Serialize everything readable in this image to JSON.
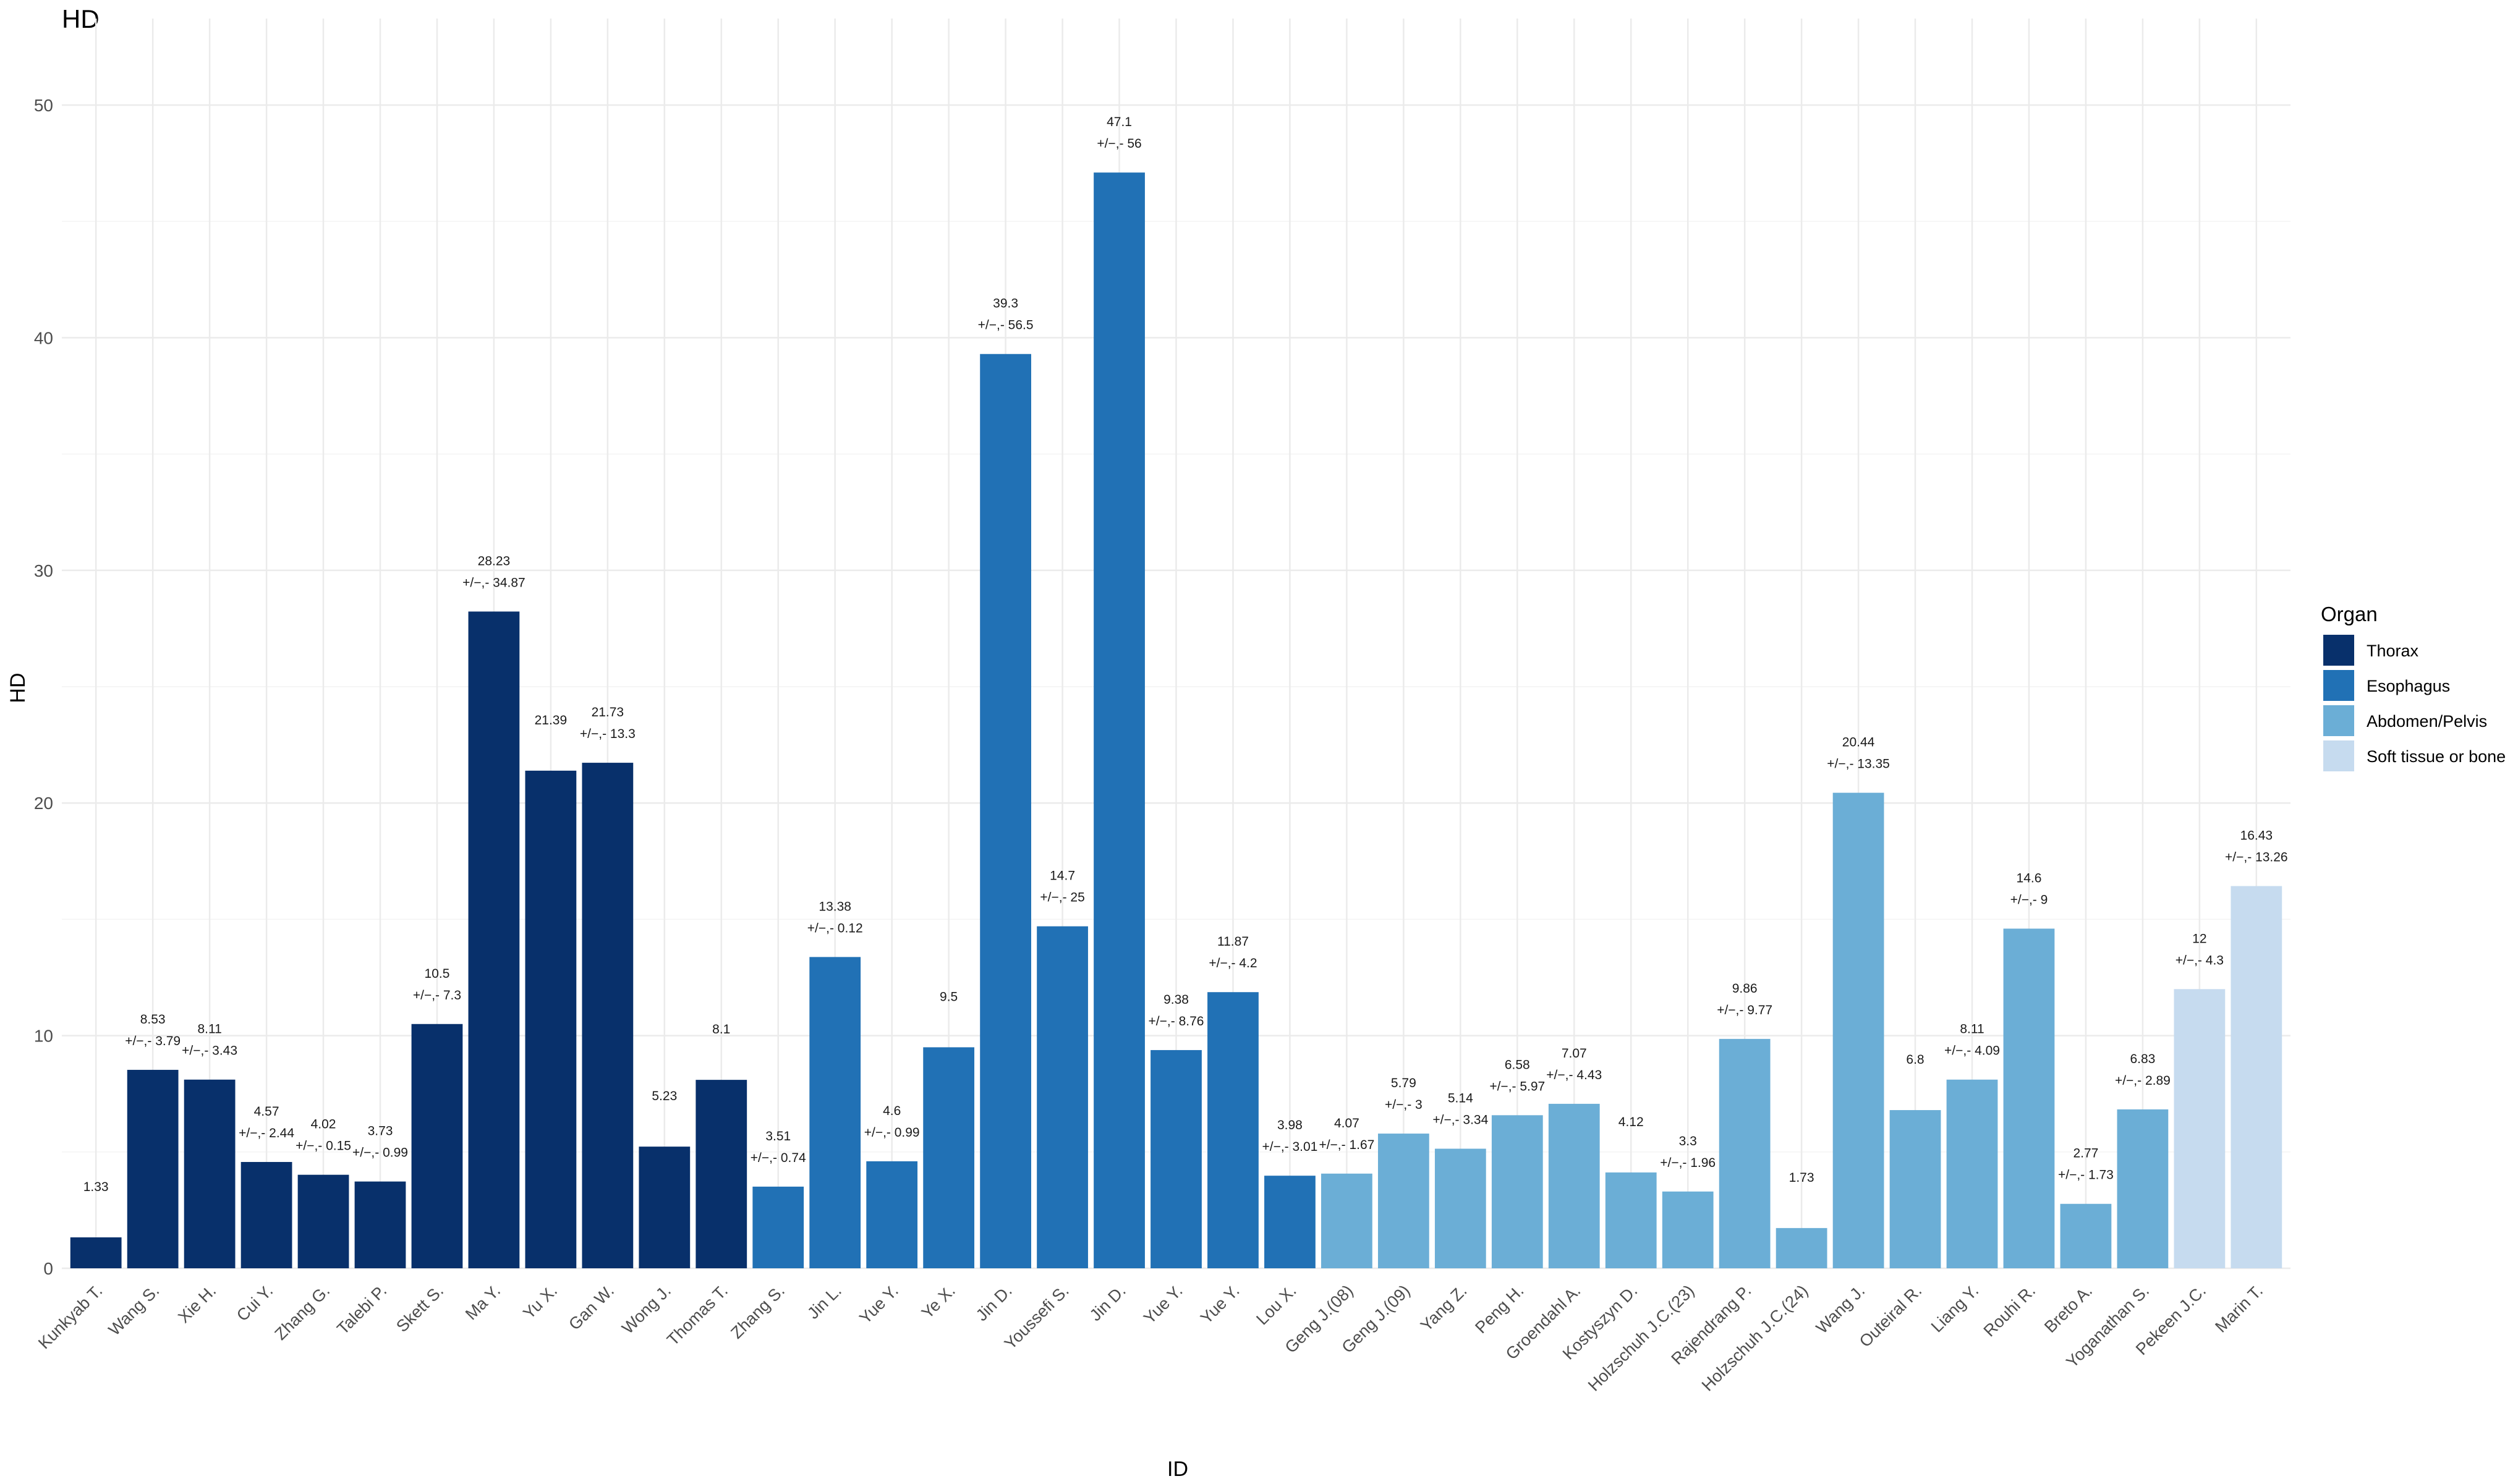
{
  "chart_data": {
    "type": "bar",
    "title": "HD",
    "xlabel": "ID",
    "ylabel": "HD",
    "ylim": [
      0,
      52
    ],
    "y_ticks": [
      0,
      10,
      20,
      30,
      40,
      50
    ],
    "grid": true,
    "legend": {
      "title": "Organ",
      "position": "right",
      "entries": [
        {
          "name": "Thorax",
          "color": "#08306B"
        },
        {
          "name": "Esophagus",
          "color": "#2171B5"
        },
        {
          "name": "Abdomen/Pelvis",
          "color": "#6BAED6"
        },
        {
          "name": "Soft tissue or bone",
          "color": "#C6DBEF"
        }
      ]
    },
    "pm_symbol": "+/−,-",
    "bars": [
      {
        "id": "Kunkyab T.",
        "value": 1.33,
        "value_label": "1.33",
        "sd_label": "",
        "organ": "Thorax"
      },
      {
        "id": "Wang S.",
        "value": 8.53,
        "value_label": "8.53",
        "sd_label": "3.79",
        "organ": "Thorax"
      },
      {
        "id": "Xie H.",
        "value": 8.11,
        "value_label": "8.11",
        "sd_label": "3.43",
        "organ": "Thorax"
      },
      {
        "id": "Cui Y.",
        "value": 4.57,
        "value_label": "4.57",
        "sd_label": "2.44",
        "organ": "Thorax"
      },
      {
        "id": "Zhang G.",
        "value": 4.02,
        "value_label": "4.02",
        "sd_label": "0.15",
        "organ": "Thorax"
      },
      {
        "id": "Talebi P.",
        "value": 3.73,
        "value_label": "3.73",
        "sd_label": "0.99",
        "organ": "Thorax"
      },
      {
        "id": "Skett S.",
        "value": 10.5,
        "value_label": "10.5",
        "sd_label": "7.3",
        "organ": "Thorax"
      },
      {
        "id": "Ma Y.",
        "value": 28.23,
        "value_label": "28.23",
        "sd_label": "34.87",
        "organ": "Thorax"
      },
      {
        "id": "Yu X.",
        "value": 21.39,
        "value_label": "21.39",
        "sd_label": "",
        "organ": "Thorax"
      },
      {
        "id": "Gan W.",
        "value": 21.73,
        "value_label": "21.73",
        "sd_label": "13.3",
        "organ": "Thorax"
      },
      {
        "id": "Wong J.",
        "value": 5.23,
        "value_label": "5.23",
        "sd_label": "",
        "organ": "Thorax"
      },
      {
        "id": "Thomas T.",
        "value": 8.1,
        "value_label": "8.1",
        "sd_label": "",
        "organ": "Thorax"
      },
      {
        "id": "Zhang S.",
        "value": 3.51,
        "value_label": "3.51",
        "sd_label": "0.74",
        "organ": "Esophagus"
      },
      {
        "id": "Jin L.",
        "value": 13.38,
        "value_label": "13.38",
        "sd_label": "0.12",
        "organ": "Esophagus"
      },
      {
        "id": "Yue Y.",
        "value": 4.6,
        "value_label": "4.6",
        "sd_label": "0.99",
        "organ": "Esophagus"
      },
      {
        "id": "Ye X.",
        "value": 9.5,
        "value_label": "9.5",
        "sd_label": "",
        "organ": "Esophagus"
      },
      {
        "id": "Jin D.",
        "value": 39.3,
        "value_label": "39.3",
        "sd_label": "56.5",
        "organ": "Esophagus"
      },
      {
        "id": "Youssefi S.",
        "value": 14.7,
        "value_label": "14.7",
        "sd_label": "25",
        "organ": "Esophagus"
      },
      {
        "id": "Jin D.",
        "value": 47.1,
        "value_label": "47.1",
        "sd_label": "56",
        "organ": "Esophagus"
      },
      {
        "id": "Yue Y.",
        "value": 9.38,
        "value_label": "9.38",
        "sd_label": "8.76",
        "organ": "Esophagus"
      },
      {
        "id": "Yue Y.",
        "value": 11.87,
        "value_label": "11.87",
        "sd_label": "4.2",
        "organ": "Esophagus"
      },
      {
        "id": "Lou X.",
        "value": 3.98,
        "value_label": "3.98",
        "sd_label": "3.01",
        "organ": "Esophagus"
      },
      {
        "id": "Geng J.(08)",
        "value": 4.07,
        "value_label": "4.07",
        "sd_label": "1.67",
        "organ": "Abdomen/Pelvis"
      },
      {
        "id": "Geng J.(09)",
        "value": 5.79,
        "value_label": "5.79",
        "sd_label": "3",
        "organ": "Abdomen/Pelvis"
      },
      {
        "id": "Yang Z.",
        "value": 5.14,
        "value_label": "5.14",
        "sd_label": "3.34",
        "organ": "Abdomen/Pelvis"
      },
      {
        "id": "Peng H.",
        "value": 6.58,
        "value_label": "6.58",
        "sd_label": "5.97",
        "organ": "Abdomen/Pelvis"
      },
      {
        "id": "Groendahl A.",
        "value": 7.07,
        "value_label": "7.07",
        "sd_label": "4.43",
        "organ": "Abdomen/Pelvis"
      },
      {
        "id": "Kostyszyn D.",
        "value": 4.12,
        "value_label": "4.12",
        "sd_label": "",
        "organ": "Abdomen/Pelvis"
      },
      {
        "id": "Holzschuh J.C.(23)",
        "value": 3.3,
        "value_label": "3.3",
        "sd_label": "1.96",
        "organ": "Abdomen/Pelvis"
      },
      {
        "id": "Rajendrang P.",
        "value": 9.86,
        "value_label": "9.86",
        "sd_label": "9.77",
        "organ": "Abdomen/Pelvis"
      },
      {
        "id": "Holzschuh J.C.(24)",
        "value": 1.73,
        "value_label": "1.73",
        "sd_label": "",
        "organ": "Abdomen/Pelvis"
      },
      {
        "id": "Wang J.",
        "value": 20.44,
        "value_label": "20.44",
        "sd_label": "13.35",
        "organ": "Abdomen/Pelvis"
      },
      {
        "id": "Outeiral R.",
        "value": 6.8,
        "value_label": "6.8",
        "sd_label": "",
        "organ": "Abdomen/Pelvis"
      },
      {
        "id": "Liang Y.",
        "value": 8.11,
        "value_label": "8.11",
        "sd_label": "4.09",
        "organ": "Abdomen/Pelvis"
      },
      {
        "id": "Rouhi R.",
        "value": 14.6,
        "value_label": "14.6",
        "sd_label": "9",
        "organ": "Abdomen/Pelvis"
      },
      {
        "id": "Breto A.",
        "value": 2.77,
        "value_label": "2.77",
        "sd_label": "1.73",
        "organ": "Abdomen/Pelvis"
      },
      {
        "id": "Yoganathan S.",
        "value": 6.83,
        "value_label": "6.83",
        "sd_label": "2.89",
        "organ": "Abdomen/Pelvis"
      },
      {
        "id": "Pekeen J.C.",
        "value": 12,
        "value_label": "12",
        "sd_label": "4.3",
        "organ": "Soft tissue or bone"
      },
      {
        "id": "Marin T.",
        "value": 16.43,
        "value_label": "16.43",
        "sd_label": "13.26",
        "organ": "Soft tissue or bone"
      }
    ]
  }
}
